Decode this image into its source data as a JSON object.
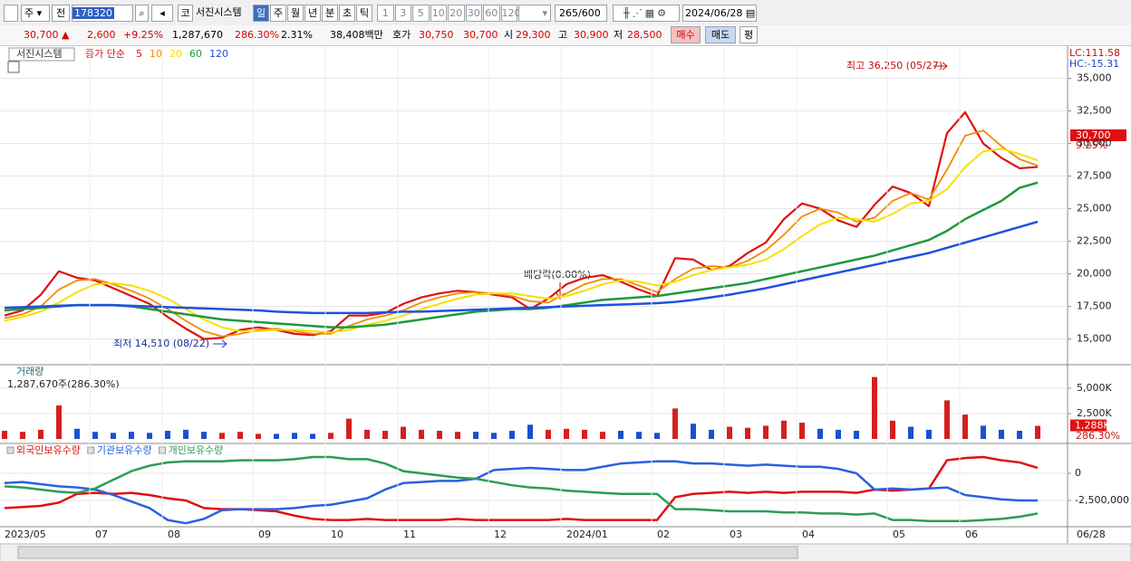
{
  "toolbar": {
    "market": "주",
    "mode": "전",
    "code": "178320",
    "kind": "코",
    "name": "서진시스템",
    "periods": [
      "일",
      "주",
      "월",
      "년",
      "분",
      "초",
      "틱"
    ],
    "minutes": [
      "1",
      "3",
      "5",
      "10",
      "20",
      "30",
      "60",
      "120"
    ],
    "count": "265",
    "max": "/600",
    "date": "2024/06/28"
  },
  "quote": {
    "price": "30,700 ▲",
    "change": "2,600",
    "rate": "+9.25%",
    "volume": "1,287,670",
    "volume_rate": "286.30%",
    "turnover_rate": "2.31%",
    "amount": "38,408백만",
    "ask_label": "호가",
    "ask": "30,750",
    "bid": "30,700",
    "open_label": "시",
    "open": "29,300",
    "high_label": "고",
    "high": "30,900",
    "low_label": "저",
    "low": "28,500",
    "buy": "매수",
    "sell": "매도",
    "avg": "평"
  },
  "chart_data": [
    {
      "type": "line",
      "title": "서진시스템",
      "legend_prefix": "종가 단순",
      "categories": [
        "2023/05",
        null,
        null,
        null,
        null,
        "07",
        null,
        null,
        null,
        "08",
        null,
        null,
        null,
        null,
        "09",
        null,
        null,
        null,
        "10",
        null,
        null,
        null,
        "11",
        null,
        null,
        null,
        null,
        "12",
        null,
        null,
        null,
        "2024/01",
        null,
        null,
        null,
        null,
        "02",
        null,
        null,
        null,
        "03",
        null,
        null,
        null,
        "04",
        null,
        null,
        null,
        null,
        "05",
        null,
        null,
        null,
        "06",
        null,
        null,
        null,
        null
      ],
      "end_label": "06/28",
      "series": [
        {
          "name": "5",
          "color": "#e01010",
          "width": 2.2,
          "values": [
            16800,
            17200,
            18400,
            20200,
            19700,
            19500,
            18900,
            18300,
            17700,
            16700,
            15800,
            15000,
            15100,
            15700,
            15900,
            15700,
            15400,
            15300,
            15600,
            16800,
            16800,
            17000,
            17700,
            18200,
            18500,
            18700,
            18600,
            18400,
            18200,
            17300,
            18100,
            19200,
            19700,
            19900,
            19400,
            18800,
            18300,
            21200,
            21100,
            20300,
            20600,
            21600,
            22400,
            24200,
            25400,
            25000,
            24100,
            23600,
            25300,
            26700,
            26200,
            25200,
            30800,
            32400,
            30000,
            28900,
            28100,
            28200
          ]
        },
        {
          "name": "10",
          "color": "#f08c00",
          "width": 1.8,
          "values": [
            16600,
            16900,
            17500,
            18800,
            19500,
            19600,
            19200,
            18700,
            18100,
            17300,
            16400,
            15600,
            15200,
            15400,
            15700,
            15800,
            15600,
            15400,
            15400,
            16000,
            16500,
            16800,
            17200,
            17800,
            18200,
            18500,
            18600,
            18500,
            18300,
            17900,
            17800,
            18500,
            19200,
            19600,
            19600,
            19100,
            18600,
            19600,
            20400,
            20600,
            20500,
            21000,
            21800,
            23000,
            24400,
            25000,
            24700,
            24000,
            24300,
            25600,
            26200,
            25700,
            28000,
            30600,
            31000,
            29800,
            28800,
            28300
          ]
        },
        {
          "name": "20",
          "color": "#f5e000",
          "width": 2,
          "values": [
            16400,
            16700,
            17100,
            17800,
            18600,
            19200,
            19300,
            19100,
            18700,
            18100,
            17300,
            16500,
            15900,
            15600,
            15600,
            15700,
            15700,
            15600,
            15500,
            15700,
            16100,
            16400,
            16800,
            17300,
            17700,
            18100,
            18400,
            18500,
            18500,
            18300,
            18100,
            18300,
            18700,
            19200,
            19500,
            19400,
            19100,
            19400,
            19900,
            20300,
            20500,
            20700,
            21100,
            21900,
            22900,
            23800,
            24300,
            24200,
            24000,
            24600,
            25400,
            25600,
            26500,
            28200,
            29400,
            29600,
            29200,
            28700
          ]
        },
        {
          "name": "60",
          "color": "#1e9a3c",
          "width": 2.5,
          "values": [
            17200,
            17300,
            17400,
            17500,
            17600,
            17600,
            17600,
            17500,
            17300,
            17100,
            16900,
            16700,
            16500,
            16400,
            16300,
            16200,
            16100,
            16000,
            15900,
            15900,
            16000,
            16100,
            16300,
            16500,
            16700,
            16900,
            17100,
            17200,
            17300,
            17300,
            17400,
            17600,
            17800,
            18000,
            18100,
            18200,
            18300,
            18500,
            18700,
            18900,
            19100,
            19300,
            19600,
            19900,
            20200,
            20500,
            20800,
            21100,
            21400,
            21800,
            22200,
            22600,
            23300,
            24200,
            24900,
            25600,
            26600,
            27000
          ]
        },
        {
          "name": "120",
          "color": "#2050e0",
          "width": 2.5,
          "values": [
            17400,
            17450,
            17500,
            17550,
            17600,
            17600,
            17600,
            17550,
            17500,
            17450,
            17400,
            17350,
            17300,
            17250,
            17200,
            17100,
            17050,
            17000,
            17000,
            17000,
            17000,
            17050,
            17100,
            17100,
            17150,
            17200,
            17250,
            17300,
            17350,
            17400,
            17450,
            17500,
            17550,
            17600,
            17650,
            17700,
            17750,
            17850,
            18000,
            18200,
            18400,
            18650,
            18900,
            19200,
            19500,
            19800,
            20100,
            20400,
            20700,
            21000,
            21300,
            21600,
            22000,
            22400,
            22800,
            23200,
            23600,
            24000
          ]
        }
      ],
      "ylim": [
        13100,
        37400
      ],
      "yticks": [
        {
          "value": 15000,
          "label": "15,000"
        },
        {
          "value": 17500,
          "label": "17,500"
        },
        {
          "value": 20000,
          "label": "20,000"
        },
        {
          "value": 22500,
          "label": "22,500"
        },
        {
          "value": 25000,
          "label": "25,000"
        },
        {
          "value": 27500,
          "label": "27,500"
        },
        {
          "value": 30000,
          "label": "30,000"
        },
        {
          "value": 32500,
          "label": "32,500"
        },
        {
          "value": 35000,
          "label": "35,000"
        }
      ],
      "grid": true,
      "annotations": {
        "high": "최고 36,250 (05/27)",
        "low": "최저 14,510 (08/22)",
        "dividend": "배당락(0.00%)",
        "lc": "LC:111.58",
        "hc": "HC:-15.31",
        "current": "30,700",
        "current_rate": "9.25%"
      }
    },
    {
      "type": "bar",
      "title": "거래량",
      "subtitle": "1,287,670주(286.30%)",
      "up_color": "#d42020",
      "down_color": "#1a50d0",
      "values": [
        800,
        700,
        900,
        3300,
        1000,
        700,
        600,
        700,
        600,
        800,
        900,
        700,
        600,
        700,
        500,
        500,
        600,
        500,
        600,
        2000,
        900,
        800,
        1200,
        900,
        800,
        700,
        700,
        600,
        800,
        1400,
        900,
        1000,
        900,
        700,
        800,
        700,
        600,
        3000,
        1500,
        900,
        1200,
        1100,
        1300,
        1800,
        1600,
        1000,
        900,
        800,
        6100,
        1800,
        1200,
        900,
        3800,
        2400,
        1300,
        900,
        800,
        1288
      ],
      "value_labels": [
        null,
        null,
        null,
        null,
        null,
        null,
        null,
        null,
        null,
        null,
        null,
        null,
        null,
        null,
        null,
        null,
        null,
        null,
        null,
        null,
        null,
        null,
        null,
        null,
        null,
        null,
        null,
        null,
        null,
        null,
        null,
        null,
        null,
        null,
        null,
        null,
        null,
        null,
        null,
        null,
        null,
        null,
        null,
        null,
        null,
        null,
        null,
        null,
        null,
        null,
        null,
        null,
        null,
        null,
        null,
        null,
        null,
        "1,288K"
      ],
      "rate_label": "286.30%",
      "ylim": [
        0,
        7140
      ],
      "yticks": [
        {
          "value": 2500,
          "label": "2,500K"
        },
        {
          "value": 5000,
          "label": "5,000K"
        }
      ],
      "grid": true
    },
    {
      "type": "line",
      "series": [
        {
          "name": "외국인보유수량",
          "color": "#e01010",
          "width": 2.5,
          "values": [
            -3200000,
            -3100000,
            -3000000,
            -2700000,
            -1900000,
            -1800000,
            -1900000,
            -1800000,
            -2000000,
            -2300000,
            -2500000,
            -3200000,
            -3300000,
            -3300000,
            -3400000,
            -3500000,
            -3900000,
            -4200000,
            -4300000,
            -4300000,
            -4200000,
            -4300000,
            -4300000,
            -4300000,
            -4300000,
            -4200000,
            -4300000,
            -4300000,
            -4300000,
            -4300000,
            -4300000,
            -4200000,
            -4300000,
            -4300000,
            -4300000,
            -4300000,
            -4300000,
            -2200000,
            -1900000,
            -1800000,
            -1700000,
            -1800000,
            -1700000,
            -1800000,
            -1700000,
            -1700000,
            -1700000,
            -1800000,
            -1500000,
            -1600000,
            -1500000,
            -1400000,
            1200000,
            1400000,
            1500000,
            1200000,
            1000000,
            500000
          ]
        },
        {
          "name": "기관보유수량",
          "color": "#2a60e0",
          "width": 2.5,
          "values": [
            -900000,
            -800000,
            -1000000,
            -1200000,
            -1300000,
            -1500000,
            -2000000,
            -2600000,
            -3200000,
            -4300000,
            -4600000,
            -4200000,
            -3400000,
            -3300000,
            -3300000,
            -3300000,
            -3200000,
            -3000000,
            -2900000,
            -2600000,
            -2300000,
            -1500000,
            -900000,
            -800000,
            -700000,
            -700000,
            -500000,
            300000,
            400000,
            500000,
            400000,
            300000,
            300000,
            600000,
            900000,
            1000000,
            1100000,
            1100000,
            900000,
            900000,
            800000,
            700000,
            800000,
            700000,
            600000,
            600000,
            400000,
            0,
            -1500000,
            -1400000,
            -1500000,
            -1400000,
            -1300000,
            -2000000,
            -2200000,
            -2400000,
            -2500000,
            -2500000
          ]
        },
        {
          "name": "개인보유수량",
          "color": "#2e9a5a",
          "width": 2.5,
          "values": [
            -1200000,
            -1300000,
            -1500000,
            -1700000,
            -1800000,
            -1400000,
            -600000,
            200000,
            700000,
            1000000,
            1100000,
            1100000,
            1100000,
            1200000,
            1200000,
            1200000,
            1300000,
            1500000,
            1500000,
            1300000,
            1300000,
            900000,
            200000,
            0,
            -200000,
            -400000,
            -500000,
            -800000,
            -1100000,
            -1300000,
            -1400000,
            -1600000,
            -1700000,
            -1800000,
            -1900000,
            -1900000,
            -1900000,
            -3300000,
            -3300000,
            -3400000,
            -3500000,
            -3500000,
            -3500000,
            -3600000,
            -3600000,
            -3700000,
            -3700000,
            -3800000,
            -3700000,
            -4300000,
            -4300000,
            -4400000,
            -4400000,
            -4400000,
            -4300000,
            -4200000,
            -4000000,
            -3700000
          ]
        }
      ],
      "ylim": [
        -4750000,
        2580000
      ],
      "yticks": [
        0,
        {
          "value": -2500000,
          "label": "-2,500,000"
        }
      ],
      "grid": true
    }
  ]
}
